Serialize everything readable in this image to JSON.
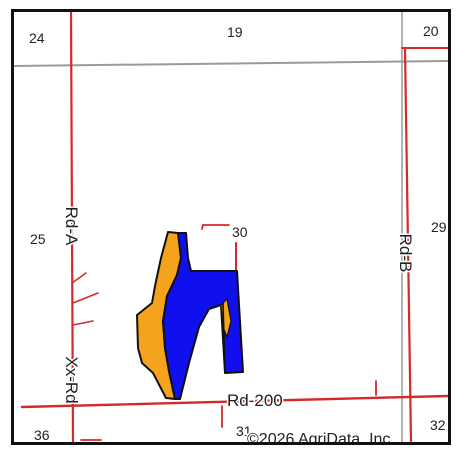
{
  "map": {
    "copyright": "©2026 AgriData, Inc.",
    "sections": {
      "s24": "24",
      "s19": "19",
      "s20": "20",
      "s25": "25",
      "s30": "30",
      "s29": "29",
      "s36": "36",
      "s31": "31",
      "s32": "32"
    },
    "roads": {
      "rd_a": "Rd-A",
      "rd_b": "Rd-B",
      "xx_rd": "Xx-Rd",
      "rd_200": "Rd-200"
    },
    "colors": {
      "road": "#d42a2a",
      "section_line": "#9a9a9a",
      "field_orange": "#f5a21c",
      "field_blue": "#1010ee",
      "field_outline": "#111111",
      "frame": "#111111"
    }
  }
}
